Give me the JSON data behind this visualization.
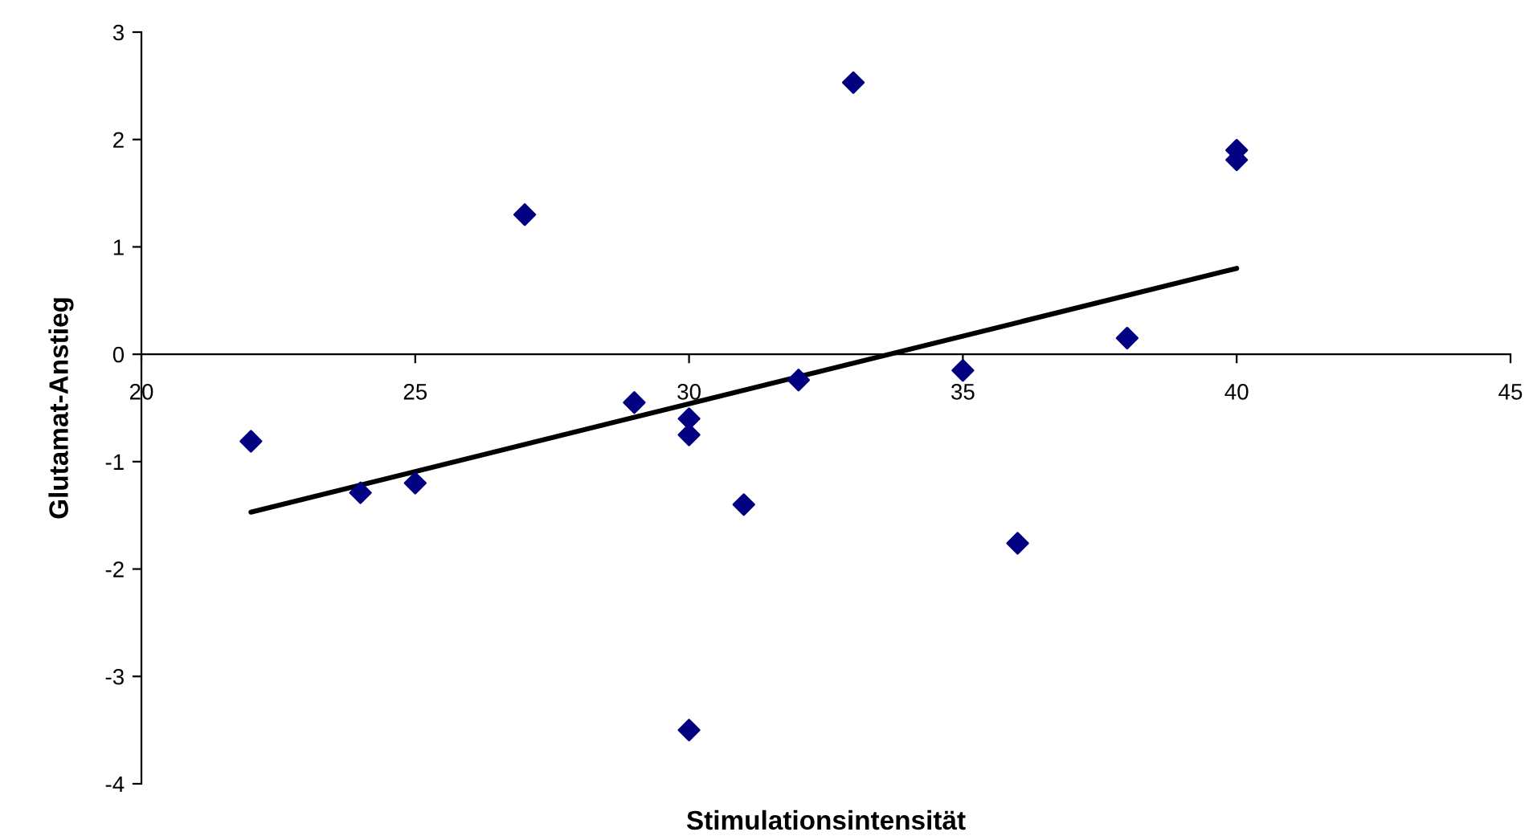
{
  "chart_data": {
    "type": "scatter",
    "xlabel": "Stimulationsintensität",
    "ylabel": "Glutamat-Anstieg",
    "xlim": [
      20,
      45
    ],
    "xticks": [
      20,
      25,
      30,
      35,
      40,
      45
    ],
    "ylim": [
      -4,
      3
    ],
    "yticks": [
      -4,
      -3,
      -2,
      -1,
      0,
      1,
      2,
      3
    ],
    "grid": false,
    "legend": false,
    "series": [
      {
        "color": "#000080",
        "marker": "diamond",
        "x": [
          22,
          24,
          25,
          27,
          29,
          30,
          30,
          30,
          31,
          32,
          33,
          35,
          36,
          38,
          40,
          40
        ],
        "values": [
          -0.81,
          -1.29,
          -1.2,
          1.3,
          -0.45,
          -0.6,
          -0.75,
          -3.5,
          -1.4,
          -0.24,
          2.53,
          -0.15,
          -1.76,
          0.15,
          1.9,
          1.81
        ]
      },
      {
        "type": "line",
        "color": "#000000",
        "x": [
          22,
          40
        ],
        "values": [
          -1.47,
          0.8
        ]
      }
    ]
  }
}
